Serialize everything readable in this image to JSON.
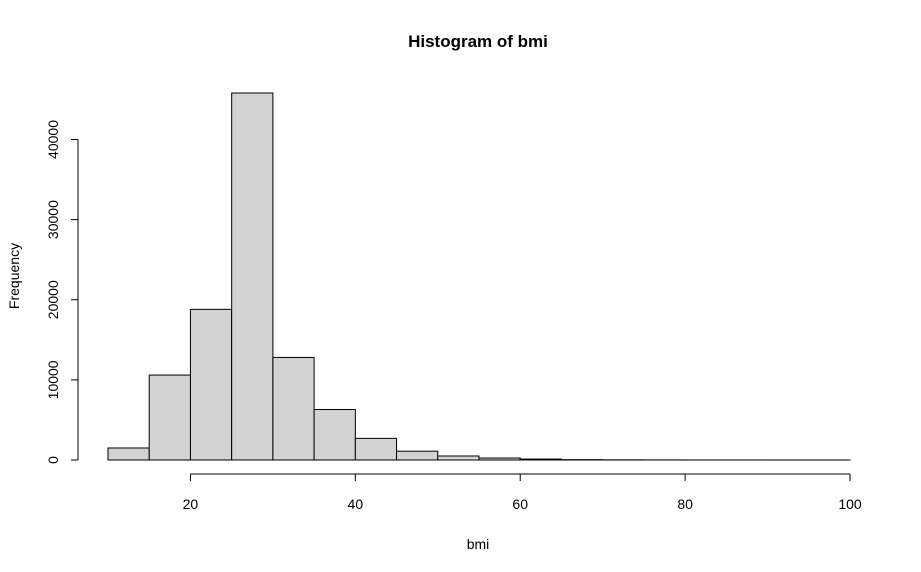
{
  "chart_data": {
    "type": "bar",
    "title": "Histogram of bmi",
    "xlabel": "bmi",
    "ylabel": "Frequency",
    "bar_color": "#d3d3d3",
    "border_color": "#000000",
    "xlim": [
      10,
      100
    ],
    "ylim": [
      0,
      45800
    ],
    "x_ticks": [
      20,
      40,
      60,
      80,
      100
    ],
    "y_ticks": [
      0,
      10000,
      20000,
      30000,
      40000
    ],
    "bins": [
      {
        "x0": 10,
        "x1": 15,
        "count": 1500
      },
      {
        "x0": 15,
        "x1": 20,
        "count": 10600
      },
      {
        "x0": 20,
        "x1": 25,
        "count": 18800
      },
      {
        "x0": 25,
        "x1": 30,
        "count": 45800
      },
      {
        "x0": 30,
        "x1": 35,
        "count": 12800
      },
      {
        "x0": 35,
        "x1": 40,
        "count": 6300
      },
      {
        "x0": 40,
        "x1": 45,
        "count": 2700
      },
      {
        "x0": 45,
        "x1": 50,
        "count": 1100
      },
      {
        "x0": 50,
        "x1": 55,
        "count": 500
      },
      {
        "x0": 55,
        "x1": 60,
        "count": 250
      },
      {
        "x0": 60,
        "x1": 65,
        "count": 120
      },
      {
        "x0": 65,
        "x1": 70,
        "count": 40
      },
      {
        "x0": 70,
        "x1": 75,
        "count": 20
      },
      {
        "x0": 75,
        "x1": 80,
        "count": 10
      },
      {
        "x0": 80,
        "x1": 85,
        "count": 5
      },
      {
        "x0": 85,
        "x1": 90,
        "count": 5
      },
      {
        "x0": 90,
        "x1": 95,
        "count": 3
      },
      {
        "x0": 95,
        "x1": 100,
        "count": 2
      }
    ]
  }
}
